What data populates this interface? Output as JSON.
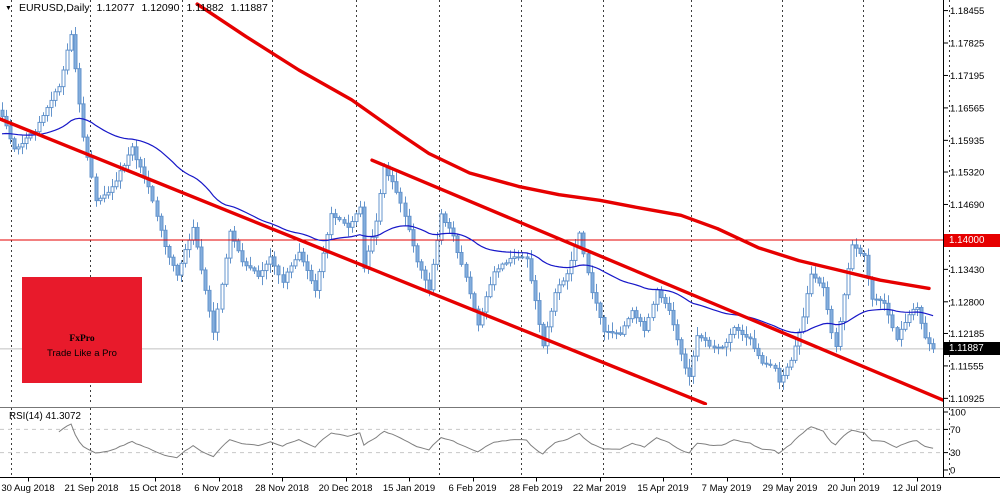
{
  "header": {
    "symbol": "EURUSD,Daily",
    "open": "1.12077",
    "high": "1.12090",
    "low": "1.11882",
    "close": "1.11887"
  },
  "logo": {
    "brand": "FxPro",
    "tagline": "Trade Like a Pro",
    "bg_color": "#e81a2b"
  },
  "price_axis": {
    "tag_red": "1.14000",
    "tag_bid": "1.11887"
  },
  "rsi_panel": {
    "label": "RSI(14) 41.3072"
  },
  "colors": {
    "red": "#e60000",
    "candle": "#6494cc",
    "candle_fill": "#85aedd",
    "ma_blue": "#1717c8",
    "grid": "#3d3d3d",
    "bid_line": "#c0c0c0",
    "rsi_line": "#808080",
    "rsi_grid": "#c8c8c8",
    "axis_text": "#000000"
  },
  "chart_data": {
    "type": "candlestick",
    "symbol": "EURUSD",
    "timeframe": "Daily",
    "title": "EURUSD,Daily 1.12077 1.12090 1.11882 1.11887",
    "x_labels": [
      "30 Aug 2018",
      "21 Sep 2018",
      "15 Oct 2018",
      "6 Nov 2018",
      "28 Nov 2018",
      "20 Dec 2018",
      "15 Jan 2019",
      "6 Feb 2019",
      "28 Feb 2019",
      "22 Mar 2019",
      "15 Apr 2019",
      "7 May 2019",
      "29 May 2019",
      "20 Jun 2019",
      "12 Jul 2019"
    ],
    "y_ticks": [
      1.18455,
      1.17825,
      1.17195,
      1.16565,
      1.15935,
      1.1532,
      1.1469,
      1.1343,
      1.128,
      1.12185,
      1.11555,
      1.10925
    ],
    "ylim": [
      1.1082,
      1.1866
    ],
    "grid": true,
    "bar_count": 230,
    "close_anchors": [
      [
        0,
        1.164
      ],
      [
        3,
        1.1575
      ],
      [
        8,
        1.161
      ],
      [
        14,
        1.17
      ],
      [
        17,
        1.18
      ],
      [
        20,
        1.16
      ],
      [
        23,
        1.1478
      ],
      [
        27,
        1.15
      ],
      [
        32,
        1.1578
      ],
      [
        36,
        1.15
      ],
      [
        40,
        1.139
      ],
      [
        43,
        1.133
      ],
      [
        47,
        1.1427
      ],
      [
        52,
        1.1218
      ],
      [
        56,
        1.1415
      ],
      [
        59,
        1.136
      ],
      [
        63,
        1.133
      ],
      [
        66,
        1.1365
      ],
      [
        69,
        1.132
      ],
      [
        73,
        1.1378
      ],
      [
        77,
        1.13
      ],
      [
        81,
        1.145
      ],
      [
        85,
        1.1425
      ],
      [
        88,
        1.1467
      ],
      [
        89,
        1.1346
      ],
      [
        92,
        1.144
      ],
      [
        94,
        1.1545
      ],
      [
        98,
        1.1475
      ],
      [
        102,
        1.136
      ],
      [
        105,
        1.1305
      ],
      [
        108,
        1.1448
      ],
      [
        111,
        1.1406
      ],
      [
        114,
        1.1325
      ],
      [
        117,
        1.1234
      ],
      [
        121,
        1.134
      ],
      [
        126,
        1.137
      ],
      [
        129,
        1.1365
      ],
      [
        133,
        1.1194
      ],
      [
        136,
        1.13
      ],
      [
        139,
        1.1335
      ],
      [
        142,
        1.141
      ],
      [
        145,
        1.13
      ],
      [
        148,
        1.1224
      ],
      [
        152,
        1.122
      ],
      [
        155,
        1.1265
      ],
      [
        158,
        1.1225
      ],
      [
        161,
        1.1305
      ],
      [
        164,
        1.126
      ],
      [
        168,
        1.115
      ],
      [
        169,
        1.1135
      ],
      [
        171,
        1.1215
      ],
      [
        174,
        1.1195
      ],
      [
        177,
        1.119
      ],
      [
        180,
        1.123
      ],
      [
        184,
        1.1207
      ],
      [
        187,
        1.116
      ],
      [
        190,
        1.115
      ],
      [
        191,
        1.1125
      ],
      [
        192,
        1.114
      ],
      [
        194,
        1.1168
      ],
      [
        197,
        1.125
      ],
      [
        199,
        1.1335
      ],
      [
        202,
        1.131
      ],
      [
        204,
        1.122
      ],
      [
        205,
        1.1193
      ],
      [
        207,
        1.1294
      ],
      [
        209,
        1.139
      ],
      [
        212,
        1.1367
      ],
      [
        214,
        1.1285
      ],
      [
        217,
        1.128
      ],
      [
        220,
        1.121
      ],
      [
        223,
        1.1255
      ],
      [
        225,
        1.127
      ],
      [
        227,
        1.121
      ],
      [
        229,
        1.11887
      ]
    ],
    "overlays": {
      "ema_blue": {
        "period": 55,
        "seed": 1.1605
      },
      "ma_red_points": [
        [
          48,
          1.1858
        ],
        [
          60,
          1.1795
        ],
        [
          73,
          1.173
        ],
        [
          86,
          1.1672
        ],
        [
          98,
          1.1605
        ],
        [
          105,
          1.1568
        ],
        [
          115,
          1.153
        ],
        [
          127,
          1.1504
        ],
        [
          137,
          1.1488
        ],
        [
          147,
          1.1477
        ],
        [
          157,
          1.1462
        ],
        [
          167,
          1.1448
        ],
        [
          176,
          1.1422
        ],
        [
          186,
          1.1385
        ],
        [
          196,
          1.136
        ],
        [
          205,
          1.1343
        ],
        [
          216,
          1.1322
        ],
        [
          228,
          1.1306
        ]
      ],
      "trendlines": [
        {
          "from": [
            -0.5,
            1.1635
          ],
          "to": [
            173,
            1.1082
          ]
        },
        {
          "from": [
            91,
            1.1555
          ],
          "to": [
            231.5,
            1.1089
          ]
        }
      ],
      "hline": 1.14,
      "bid_line": 1.11887
    },
    "rsi": {
      "period": 14,
      "value": 41.3072,
      "levels": [
        70,
        30
      ],
      "range": [
        0,
        100
      ],
      "ticks": [
        100,
        70,
        30,
        0
      ]
    }
  }
}
